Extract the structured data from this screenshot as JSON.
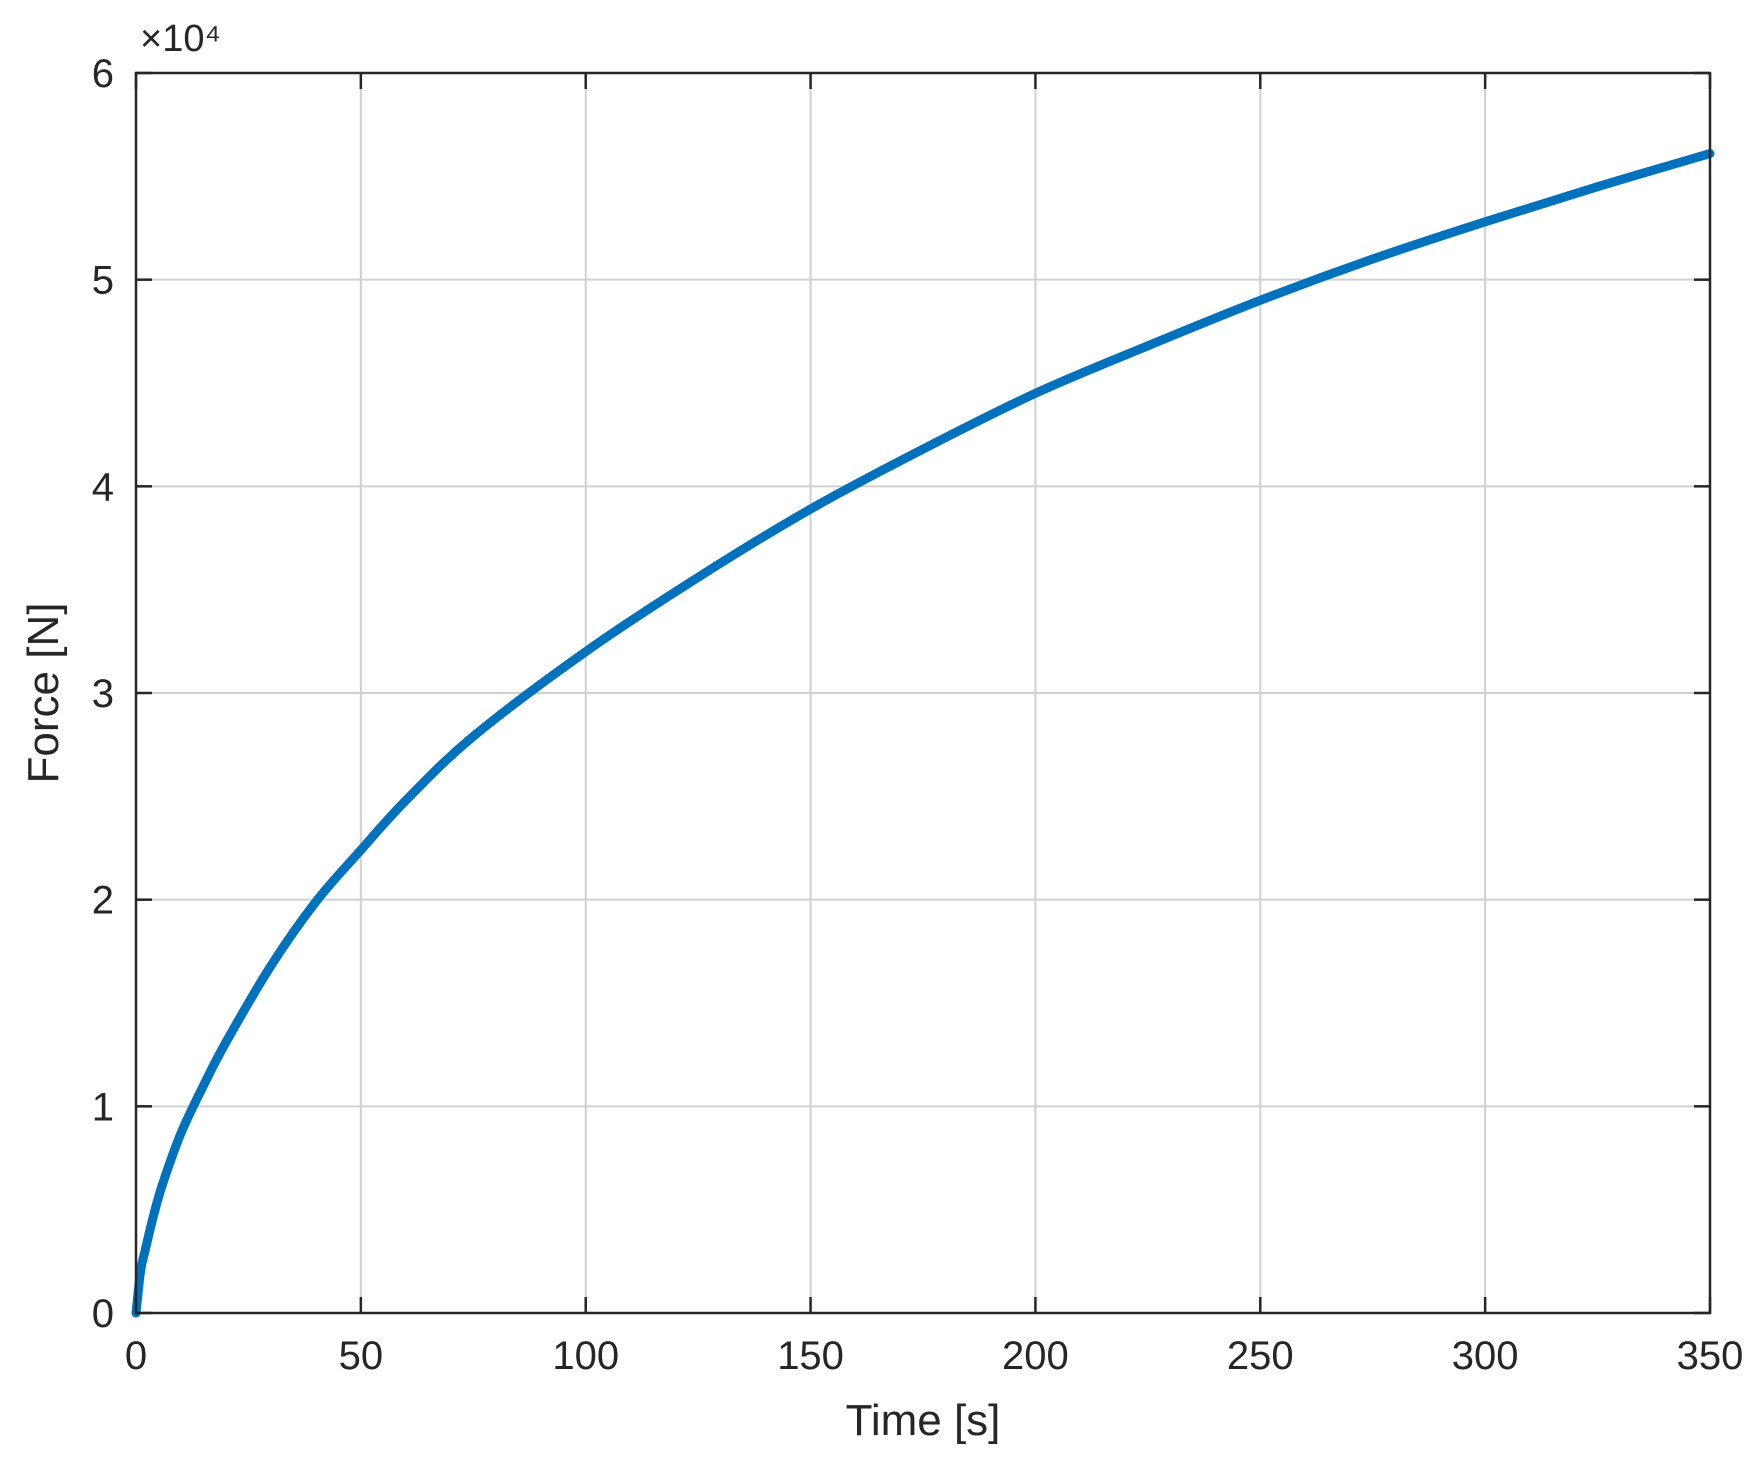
{
  "chart_data": {
    "type": "line",
    "xlabel": "Time [s]",
    "ylabel": "Force [N]",
    "y_exponent_label": "×10⁴",
    "xlim": [
      0,
      350
    ],
    "ylim": [
      0,
      60000
    ],
    "grid": true,
    "xticks": [
      0,
      50,
      100,
      150,
      200,
      250,
      300,
      350
    ],
    "xtick_labels": [
      "0",
      "50",
      "100",
      "150",
      "200",
      "250",
      "300",
      "350"
    ],
    "yticks": [
      0,
      10000,
      20000,
      30000,
      40000,
      50000,
      60000
    ],
    "ytick_labels": [
      "0",
      "1",
      "2",
      "3",
      "4",
      "5",
      "6"
    ],
    "series": [
      {
        "color": "#0072BD",
        "x": [
          0,
          1,
          2,
          4,
          6,
          10,
          15,
          20,
          30,
          40,
          50,
          60,
          75,
          100,
          125,
          150,
          175,
          200,
          225,
          250,
          275,
          300,
          325,
          350
        ],
        "y": [
          0,
          2000,
          3000,
          4800,
          6300,
          8700,
          11000,
          13100,
          16800,
          19900,
          22400,
          24800,
          27900,
          32000,
          35600,
          38900,
          41800,
          44500,
          46800,
          49000,
          51000,
          52800,
          54500,
          56100
        ]
      }
    ]
  }
}
